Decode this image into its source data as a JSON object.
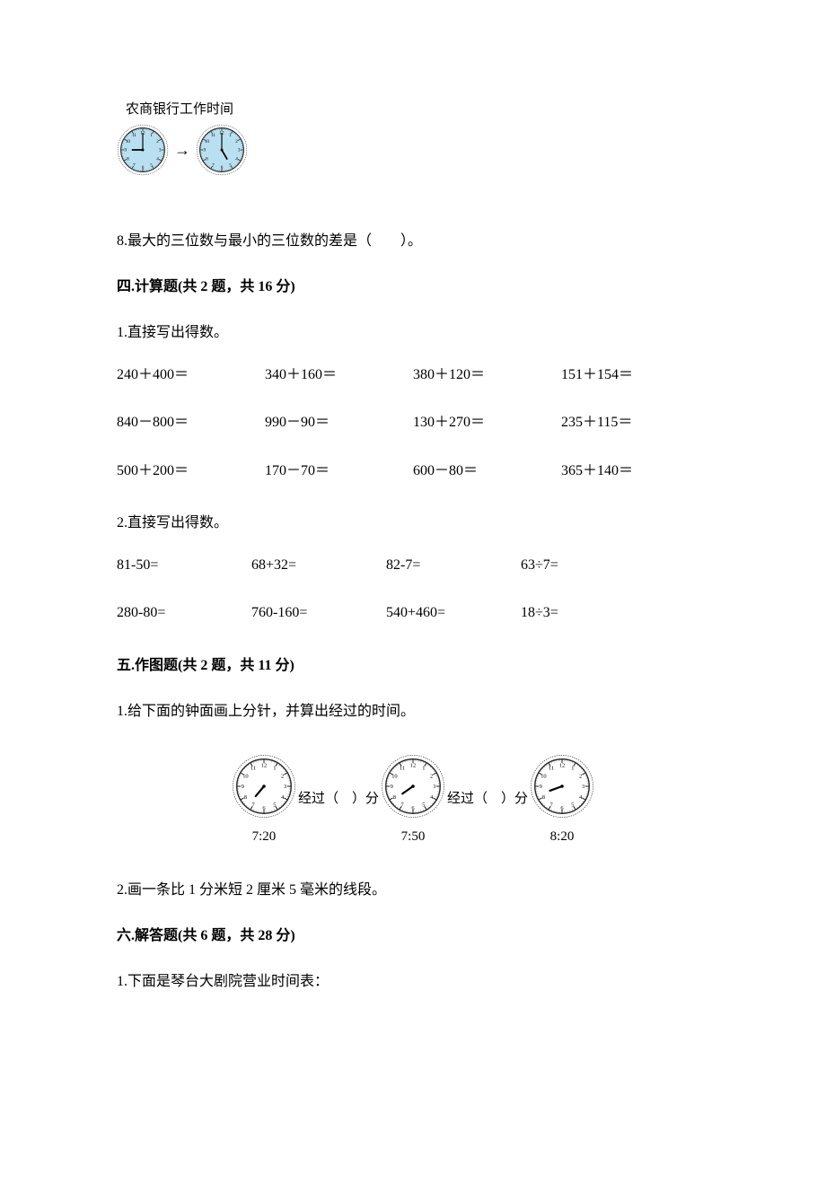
{
  "bank": {
    "title": "农商银行工作时间",
    "clock1": {
      "hour_angle": 270,
      "minute_angle": 0,
      "face_color": "#b8e0f0",
      "border_color": "#3a3a3a"
    },
    "clock2": {
      "hour_angle": 150,
      "minute_angle": 0,
      "face_color": "#b8e0f0",
      "border_color": "#3a3a3a"
    },
    "arrow": "→"
  },
  "q8": {
    "text": "8.最大的三位数与最小的三位数的差是（　　）。"
  },
  "section4": {
    "header": "四.计算题(共 2 题，共 16 分)",
    "sub1": "1.直接写出得数。",
    "rows": [
      [
        "240＋400＝",
        "340＋160＝",
        "380＋120＝",
        "151＋154＝"
      ],
      [
        "840－800＝",
        "990－90＝",
        "130＋270＝",
        "235＋115＝"
      ],
      [
        "500＋200＝",
        "170－70＝",
        "600－80＝",
        "365＋140＝"
      ]
    ],
    "sub2": "2.直接写出得数。",
    "rows2": [
      [
        "81-50=",
        "68+32=",
        "82-7=",
        "63÷7="
      ],
      [
        "280-80=",
        "760-160=",
        "540+460=",
        "18÷3="
      ]
    ]
  },
  "section5": {
    "header": "五.作图题(共 2 题，共 11 分)",
    "sub1": "1.给下面的钟面画上分针，并算出经过的时间。",
    "clocks": [
      {
        "label": "7:20",
        "hour_angle": 220
      },
      {
        "label": "7:50",
        "hour_angle": 235
      },
      {
        "label": "8:20",
        "hour_angle": 250
      }
    ],
    "elapsed_prefix": "经过（",
    "elapsed_suffix": "）分",
    "sub2": "2.画一条比 1 分米短 2 厘米 5 毫米的线段。"
  },
  "section6": {
    "header": "六.解答题(共 6 题，共 28 分)",
    "sub1": "1.下面是琴台大剧院营业时间表："
  },
  "clock_style": {
    "face_color": "#ffffff",
    "border_color": "#2a2a2a",
    "tick_color": "#2a2a2a",
    "hand_color": "#000000",
    "number_fontsize": 6
  }
}
